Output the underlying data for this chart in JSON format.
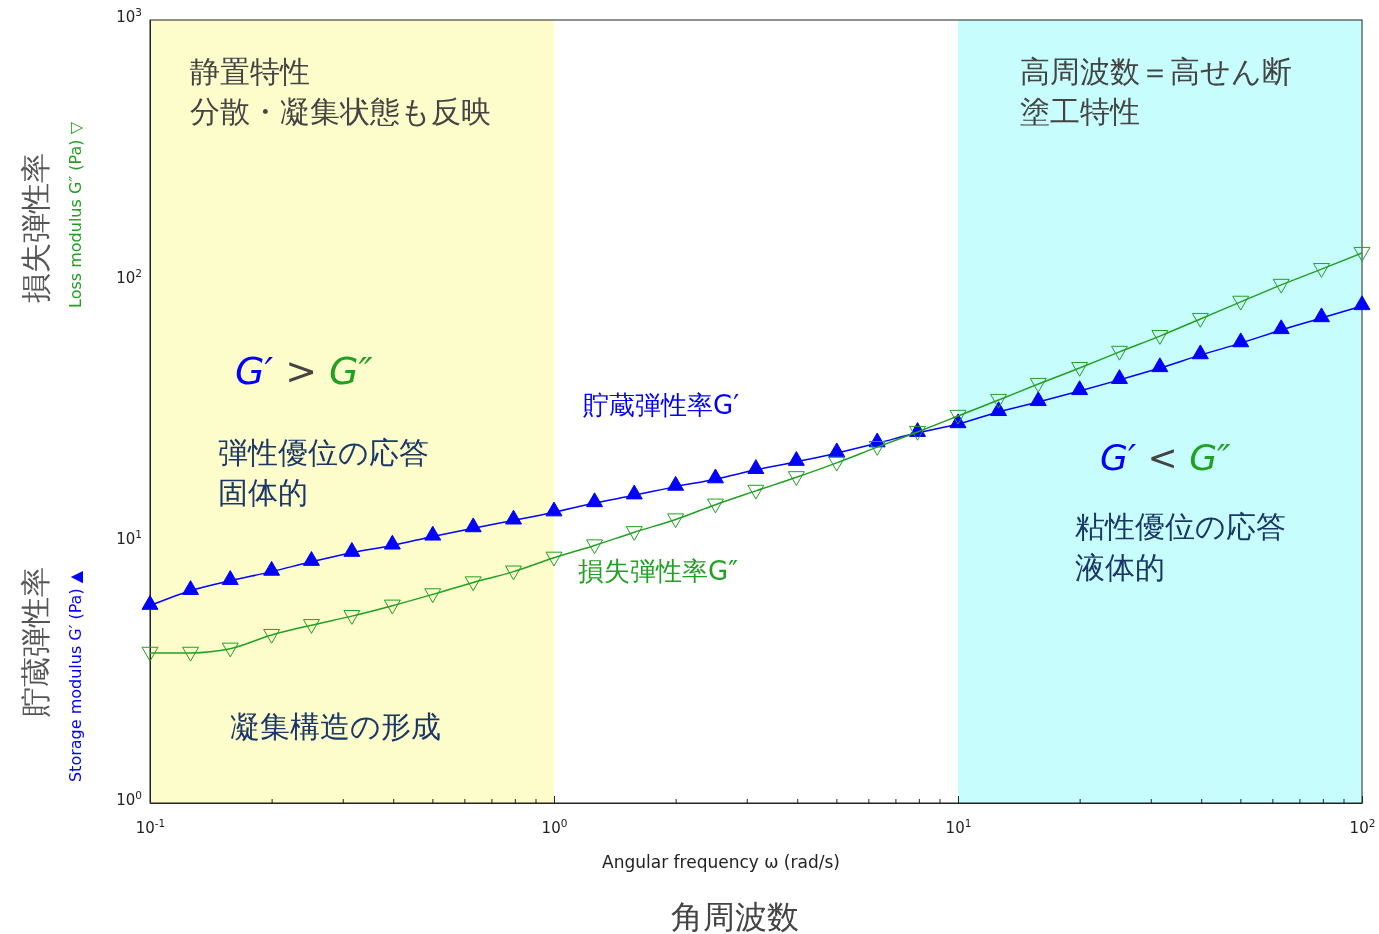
{
  "chart_data": {
    "type": "line",
    "xlabel": "Angular frequency  ω  (rad/s)",
    "ylabel": "Storage modulus  G′ (Pa) ▲",
    "y2label": "Loss modulus  G″ (Pa) ▽",
    "log": "xy",
    "grid": false,
    "marker": "triangle",
    "xlim": [
      0.1,
      100
    ],
    "ylim": [
      1,
      1000
    ],
    "xticks": [
      {
        "value": 0.1,
        "label": "10$^{-1}$"
      },
      {
        "value": 0.2,
        "label": null
      },
      {
        "value": 0.3,
        "label": null
      },
      {
        "value": 0.4,
        "label": null
      },
      {
        "value": 0.5,
        "label": null
      },
      {
        "value": 0.6,
        "label": null
      },
      {
        "value": 0.7,
        "label": null
      },
      {
        "value": 0.8,
        "label": null
      },
      {
        "value": 0.9,
        "label": null
      },
      {
        "value": 1,
        "label": "10$^{0}$"
      },
      {
        "value": 2,
        "label": null
      },
      {
        "value": 3,
        "label": null
      },
      {
        "value": 4,
        "label": null
      },
      {
        "value": 5,
        "label": null
      },
      {
        "value": 6,
        "label": null
      },
      {
        "value": 7,
        "label": null
      },
      {
        "value": 8,
        "label": null
      },
      {
        "value": 9,
        "label": null
      },
      {
        "value": 10,
        "label": "10$^{1}$"
      },
      {
        "value": 20,
        "label": null
      },
      {
        "value": 30,
        "label": null
      },
      {
        "value": 40,
        "label": null
      },
      {
        "value": 50,
        "label": null
      },
      {
        "value": 60,
        "label": null
      },
      {
        "value": 70,
        "label": null
      },
      {
        "value": 80,
        "label": null
      },
      {
        "value": 90,
        "label": null
      },
      {
        "value": 100,
        "label": "10$^{2}$"
      }
    ],
    "yticks": [
      {
        "value": 1,
        "label": "10$^{0}$"
      },
      {
        "value": 10,
        "label": "10$^{1}$"
      },
      {
        "value": 100,
        "label": "10$^{2}$"
      },
      {
        "value": 1000,
        "label": "10$^{3}$"
      }
    ],
    "x": [
      0.1,
      0.126,
      0.158,
      0.2,
      0.251,
      0.316,
      0.398,
      0.501,
      0.631,
      0.794,
      1,
      1.26,
      1.58,
      2,
      2.51,
      3.16,
      3.98,
      5.01,
      6.31,
      7.94,
      10,
      12.6,
      15.8,
      20,
      25.1,
      31.6,
      39.8,
      50.1,
      63.1,
      79.4,
      100
    ],
    "series": [
      {
        "name": "貯蔵弾性率G′",
        "color": "#0000ff",
        "values": [
          5.7,
          6.5,
          7.1,
          7.7,
          8.4,
          9.1,
          9.7,
          10.5,
          11.3,
          12.1,
          13.0,
          14.1,
          15.1,
          16.3,
          17.4,
          18.9,
          20.3,
          21.9,
          23.9,
          26.2,
          28.3,
          31.5,
          34.4,
          37.9,
          41.8,
          46.4,
          52.0,
          57.8,
          64.9,
          72.1,
          80.2
        ]
      },
      {
        "name": "損失弾性率G″",
        "color": "#22a022",
        "values": [
          3.76,
          3.76,
          3.9,
          4.4,
          4.8,
          5.2,
          5.7,
          6.3,
          7.0,
          7.7,
          8.7,
          9.7,
          10.9,
          12.2,
          13.9,
          15.7,
          17.7,
          20.1,
          23.1,
          26.4,
          30.4,
          35.0,
          40.3,
          46.4,
          53.5,
          61.5,
          71.5,
          83.2,
          96.6,
          111,
          128
        ]
      }
    ],
    "bands": [
      {
        "axis": "x",
        "from": 0.1,
        "to": 1,
        "color": "#fdfccb"
      },
      {
        "axis": "x",
        "from": 10,
        "to": 100,
        "color": "#c8fdfd"
      }
    ],
    "annotations": [
      "静置特性",
      "分散・凝集状態も反映",
      "G′ > G″",
      "弾性優位の応答",
      "固体的",
      "凝集構造の形成",
      "高周波数＝高せん断",
      "塗工特性",
      "G′ < G″",
      "粘性優位の応答",
      "液体的",
      "貯蔵弾性率",
      "損失弾性率",
      "角周波数"
    ]
  }
}
